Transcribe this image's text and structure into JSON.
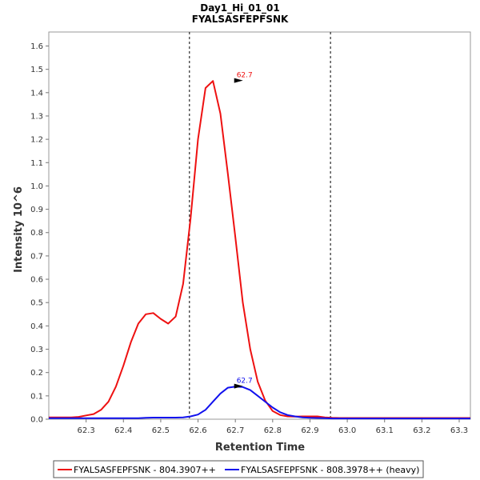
{
  "chart_data": {
    "type": "line",
    "title": "Day1_Hi_01_01",
    "subtitle": "FYALSASFEPFSNK",
    "xlabel": "Retention Time",
    "ylabel": "Intensity 10^6",
    "xlim": [
      62.2,
      63.33
    ],
    "ylim": [
      0,
      1.66
    ],
    "x_ticks": [
      "62.3",
      "62.4",
      "62.5",
      "62.6",
      "62.7",
      "62.8",
      "62.9",
      "63.0",
      "63.1",
      "63.2",
      "63.3"
    ],
    "y_ticks": [
      "0.0",
      "0.1",
      "0.2",
      "0.3",
      "0.4",
      "0.5",
      "0.6",
      "0.7",
      "0.8",
      "0.9",
      "1.0",
      "1.1",
      "1.2",
      "1.3",
      "1.4",
      "1.5",
      "1.6"
    ],
    "boundaries": [
      62.577,
      62.955
    ],
    "grid": false,
    "legend_position": "bottom",
    "series": [
      {
        "name": "FYALSASFEPFSNK - 804.3907++",
        "color": "#ee1111",
        "x": [
          62.2,
          62.22,
          62.24,
          62.26,
          62.28,
          62.3,
          62.32,
          62.34,
          62.36,
          62.38,
          62.4,
          62.42,
          62.44,
          62.46,
          62.48,
          62.5,
          62.52,
          62.54,
          62.56,
          62.58,
          62.6,
          62.62,
          62.64,
          62.66,
          62.68,
          62.7,
          62.72,
          62.74,
          62.76,
          62.78,
          62.8,
          62.82,
          62.84,
          62.86,
          62.88,
          62.9,
          62.92,
          62.94,
          62.96,
          62.98,
          63.0,
          63.05,
          63.1,
          63.15,
          63.2,
          63.25,
          63.3,
          63.33
        ],
        "values": [
          0.008,
          0.008,
          0.008,
          0.008,
          0.01,
          0.016,
          0.022,
          0.04,
          0.075,
          0.14,
          0.23,
          0.33,
          0.41,
          0.45,
          0.455,
          0.43,
          0.41,
          0.44,
          0.58,
          0.86,
          1.2,
          1.42,
          1.45,
          1.31,
          1.05,
          0.78,
          0.5,
          0.3,
          0.16,
          0.08,
          0.035,
          0.018,
          0.012,
          0.011,
          0.012,
          0.012,
          0.012,
          0.008,
          0.006,
          0.005,
          0.005,
          0.005,
          0.005,
          0.005,
          0.005,
          0.005,
          0.005,
          0.005
        ]
      },
      {
        "name": "FYALSASFEPFSNK - 808.3978++ (heavy)",
        "color": "#1111ee",
        "x": [
          62.2,
          62.25,
          62.3,
          62.35,
          62.4,
          62.44,
          62.46,
          62.48,
          62.5,
          62.52,
          62.54,
          62.56,
          62.58,
          62.6,
          62.62,
          62.64,
          62.66,
          62.68,
          62.7,
          62.72,
          62.74,
          62.76,
          62.78,
          62.8,
          62.82,
          62.84,
          62.86,
          62.88,
          62.9,
          62.92,
          62.94,
          62.96,
          63.0,
          63.1,
          63.2,
          63.33
        ],
        "values": [
          0.004,
          0.004,
          0.004,
          0.004,
          0.004,
          0.004,
          0.006,
          0.007,
          0.007,
          0.007,
          0.007,
          0.008,
          0.012,
          0.02,
          0.04,
          0.075,
          0.11,
          0.135,
          0.14,
          0.138,
          0.125,
          0.1,
          0.075,
          0.05,
          0.03,
          0.018,
          0.012,
          0.008,
          0.006,
          0.005,
          0.004,
          0.003,
          0.003,
          0.003,
          0.003,
          0.003
        ]
      }
    ],
    "annotations": [
      {
        "series": 0,
        "x": 62.714,
        "y": 1.452,
        "label": "62.7"
      },
      {
        "series": 1,
        "x": 62.714,
        "y": 0.142,
        "label": "62.7"
      }
    ]
  }
}
